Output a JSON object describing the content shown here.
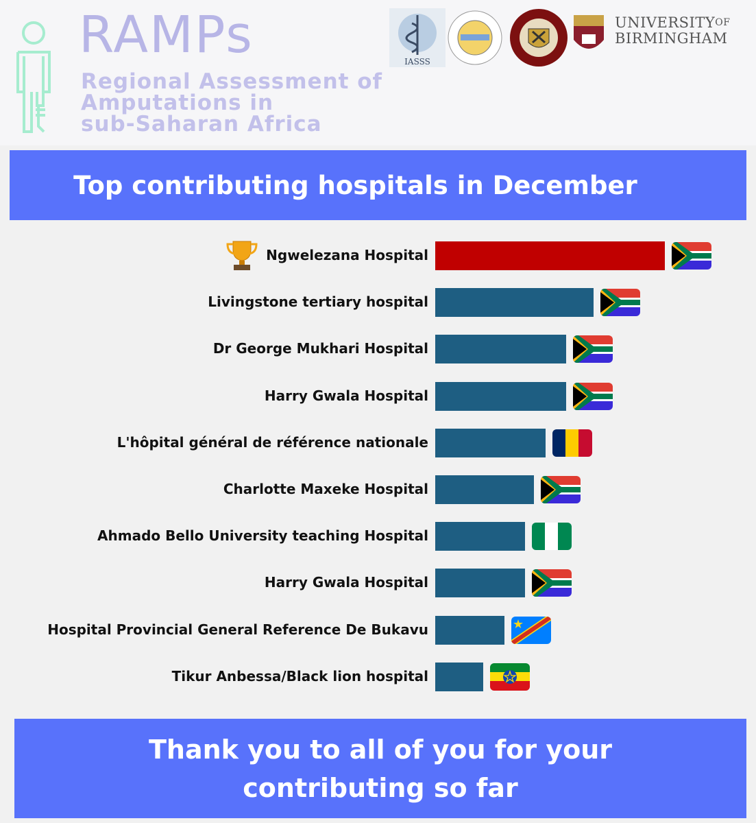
{
  "brand": {
    "title": "RAMPs",
    "subtitle_lines": [
      "Regional Assessment of",
      "Amputations in",
      "sub-Saharan Africa"
    ]
  },
  "partners": {
    "iasss_label": "IASSS",
    "uob_line1": "UNIVERSITY",
    "uob_of": "OF",
    "uob_line2": "BIRMINGHAM"
  },
  "colors": {
    "banner": "#5872fb",
    "top_bar": "#c00000",
    "bar": "#1e5e82"
  },
  "chart_data": {
    "type": "bar",
    "orientation": "horizontal",
    "title": "Top contributing hospitals in December",
    "categories": [
      "Ngwelezana Hospital",
      "Livingstone tertiary hospital",
      "Dr George Mukhari Hospital",
      "Harry Gwala Hospital",
      "L'hôpital général de référence nationale",
      "Charlotte Maxeke Hospital",
      "Ahmado Bello University teaching  Hospital",
      "Harry Gwala Hospital",
      "Hospital Provincial General Reference De Bukavu",
      "Tikur Anbessa/Black lion hospital"
    ],
    "values": [
      100,
      69,
      57,
      57,
      48,
      43,
      39,
      39,
      30,
      21
    ],
    "flags": [
      "south-africa",
      "south-africa",
      "south-africa",
      "south-africa",
      "chad",
      "south-africa",
      "nigeria",
      "south-africa",
      "dr-congo",
      "ethiopia"
    ],
    "highlight_first": true,
    "xlabel": "",
    "ylabel": "",
    "grid": false,
    "legend": "none"
  },
  "footer": {
    "line1": "Thank you to all of you for your",
    "line2": "contributing so far"
  }
}
